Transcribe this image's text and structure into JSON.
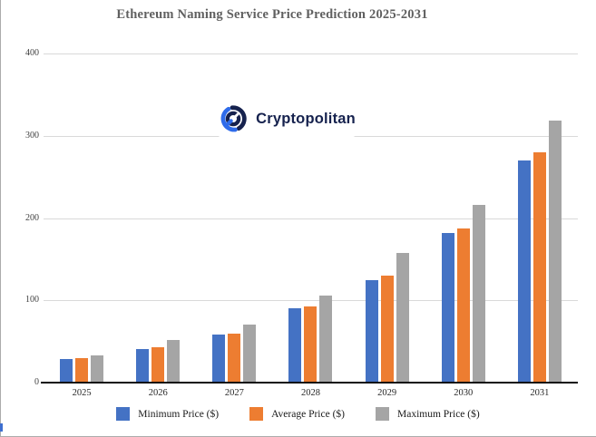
{
  "title": "Ethereum Naming Service Price Prediction 2025-2031",
  "watermark": {
    "brand": "Cryptopolitan"
  },
  "colors": {
    "min_series": "#4472C4",
    "avg_series": "#ED7D31",
    "max_series": "#A5A5A5",
    "title_text": "#606060",
    "gridline": "#D9D9D9",
    "axis_line": "#0d0d0d",
    "logo_navy": "#16224e",
    "logo_blue": "#2e6bea",
    "frame": "#ababab",
    "cursor_mark": "#3e6fd0"
  },
  "chart_data": {
    "type": "bar",
    "title": "Ethereum Naming Service Price Prediction 2025-2031",
    "categories": [
      "2025",
      "2026",
      "2027",
      "2028",
      "2029",
      "2030",
      "2031"
    ],
    "series": [
      {
        "name": "Minimum Price ($)",
        "color": "#4472C4",
        "values": [
          29,
          41,
          58,
          90,
          125,
          182,
          270
        ]
      },
      {
        "name": "Average Price ($)",
        "color": "#ED7D31",
        "values": [
          30,
          43,
          60,
          93,
          130,
          187,
          280
        ]
      },
      {
        "name": "Maximum Price ($)",
        "color": "#A5A5A5",
        "values": [
          33,
          52,
          71,
          106,
          158,
          216,
          319
        ]
      }
    ],
    "xlabel": "",
    "ylabel": "",
    "ylim": [
      0,
      400
    ],
    "yticks": [
      0,
      100,
      200,
      300,
      400
    ],
    "grid": true,
    "legend_position": "bottom"
  }
}
